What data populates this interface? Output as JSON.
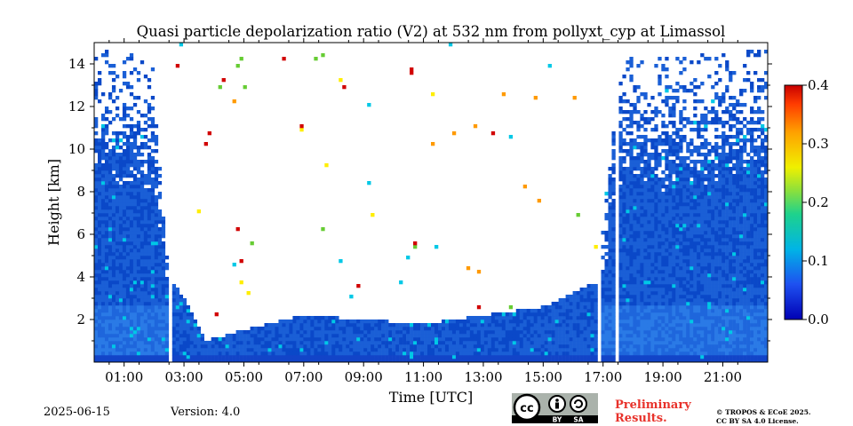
{
  "chart_data": {
    "type": "heatmap",
    "title": "Quasi particle depolarization ratio (V2) at 532 nm from pollyxt_cyp at Limassol",
    "xlabel": "Time [UTC]",
    "ylabel": "Height [km]",
    "xlim": [
      "00:00",
      "22:30"
    ],
    "ylim": [
      0,
      15
    ],
    "x_ticks": [
      "01:00",
      "03:00",
      "05:00",
      "07:00",
      "09:00",
      "11:00",
      "13:00",
      "15:00",
      "17:00",
      "19:00",
      "21:00"
    ],
    "y_ticks": [
      "2",
      "4",
      "6",
      "8",
      "10",
      "12",
      "14"
    ],
    "colorbar": {
      "range": [
        0.0,
        0.4
      ],
      "ticks": [
        "0.0",
        "0.1",
        "0.2",
        "0.3",
        "0.4"
      ],
      "colormap": "jet"
    },
    "data_gaps_utc": [
      "02:32",
      "16:52",
      "17:25"
    ],
    "signal_top_profile_km": [
      {
        "time": "00:00",
        "top": 14.8
      },
      {
        "time": "01:00",
        "top": 14.5
      },
      {
        "time": "02:00",
        "top": 14.2
      },
      {
        "time": "02:30",
        "top": 4.0
      },
      {
        "time": "03:00",
        "top": 3.0
      },
      {
        "time": "03:45",
        "top": 1.0
      },
      {
        "time": "05:00",
        "top": 1.5
      },
      {
        "time": "07:00",
        "top": 2.2
      },
      {
        "time": "11:00",
        "top": 1.8
      },
      {
        "time": "13:00",
        "top": 2.2
      },
      {
        "time": "15:00",
        "top": 2.6
      },
      {
        "time": "16:50",
        "top": 3.8
      },
      {
        "time": "17:30",
        "top": 14.2
      },
      {
        "time": "22:30",
        "top": 14.8
      }
    ],
    "typical_value_low_levels": 0.03,
    "colors": {
      "low": "#00008f",
      "mid_blue": "#1a5fd6",
      "cyan": "#00c8e6",
      "green": "#66cc33",
      "yellow": "#ffee00",
      "orange": "#ff9a00",
      "red": "#d10000"
    }
  },
  "footer": {
    "date": "2025-06-15",
    "version": "Version: 4.0",
    "preliminary": [
      "Preliminary",
      "Results."
    ],
    "copyright": [
      "© TROPOS & ECoE 2025.",
      "CC BY SA 4.0 License."
    ],
    "license_badge": {
      "cc": "cc",
      "by": "BY",
      "sa": "SA"
    }
  }
}
